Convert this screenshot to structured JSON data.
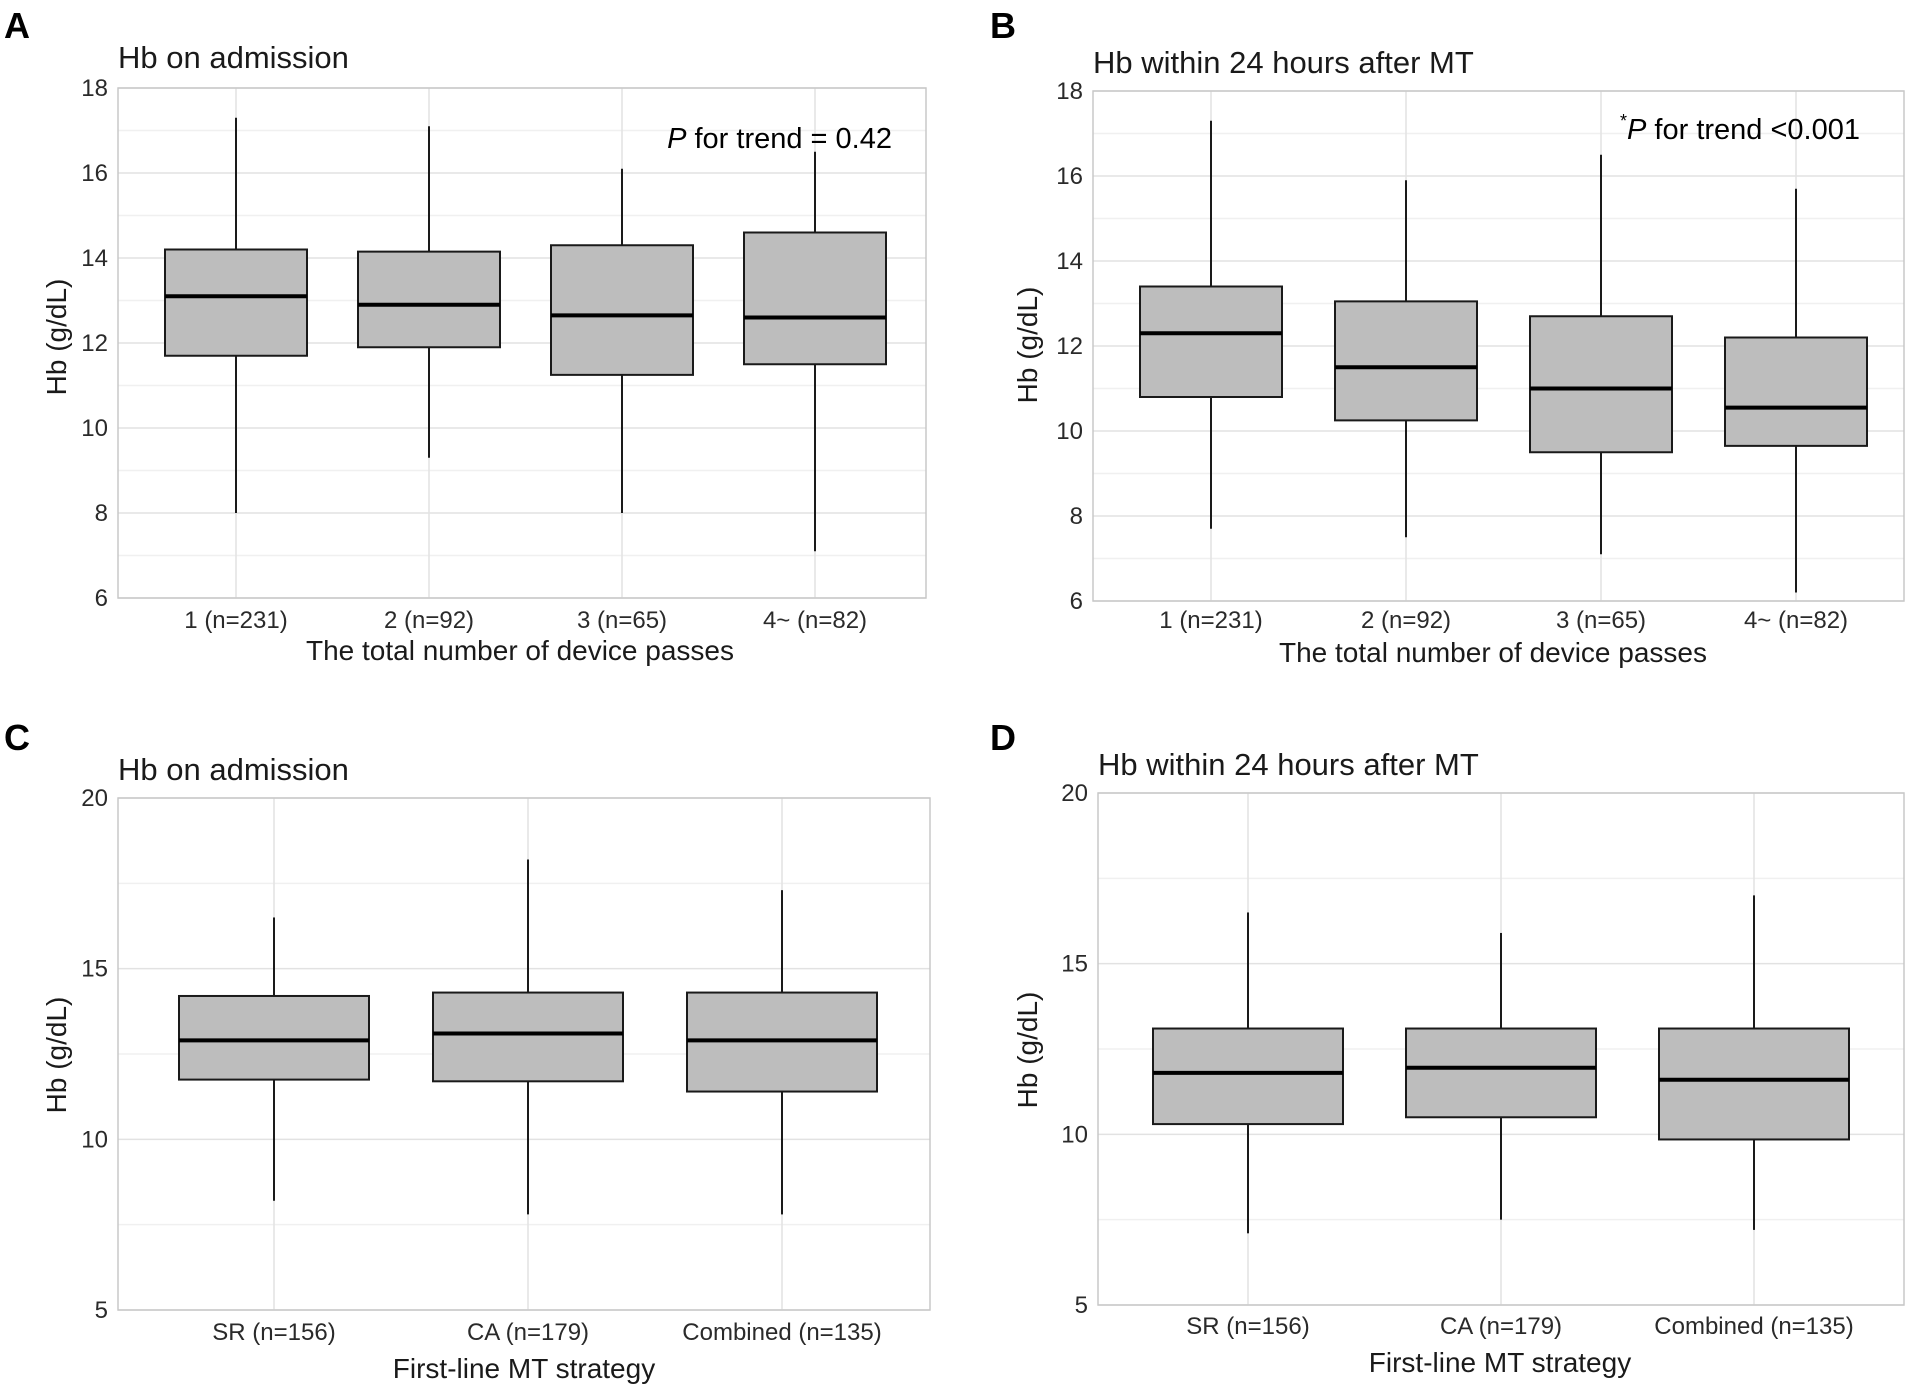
{
  "chart_data": [
    {
      "panel": "A",
      "type": "boxplot",
      "title": "Hb on admission",
      "xlabel": "The total number of device passes",
      "ylabel": "Hb (g/dL)",
      "ylim": [
        6,
        18
      ],
      "yticks": [
        6,
        8,
        10,
        12,
        14,
        16,
        18
      ],
      "grid": true,
      "annotation": {
        "prefix": "",
        "p": "P",
        "text": " for trend = 0.42"
      },
      "categories": [
        "1 (n=231)",
        "2 (n=92)",
        "3 (n=65)",
        "4~ (n=82)"
      ],
      "boxes": [
        {
          "min": 8.0,
          "q1": 11.7,
          "median": 13.1,
          "q3": 14.2,
          "max": 17.3
        },
        {
          "min": 9.3,
          "q1": 11.9,
          "median": 12.9,
          "q3": 14.15,
          "max": 17.1
        },
        {
          "min": 8.0,
          "q1": 11.25,
          "median": 12.65,
          "q3": 14.3,
          "max": 16.1
        },
        {
          "min": 7.1,
          "q1": 11.5,
          "median": 12.6,
          "q3": 14.6,
          "max": 16.5
        }
      ]
    },
    {
      "panel": "B",
      "type": "boxplot",
      "title": "Hb within 24 hours after MT",
      "xlabel": "The total number of device passes",
      "ylabel": "Hb (g/dL)",
      "ylim": [
        6,
        18
      ],
      "yticks": [
        6,
        8,
        10,
        12,
        14,
        16,
        18
      ],
      "grid": true,
      "annotation": {
        "prefix": "*",
        "p": "P",
        "text": " for trend <0.001"
      },
      "categories": [
        "1 (n=231)",
        "2 (n=92)",
        "3 (n=65)",
        "4~ (n=82)"
      ],
      "boxes": [
        {
          "min": 7.7,
          "q1": 10.8,
          "median": 12.3,
          "q3": 13.4,
          "max": 17.3
        },
        {
          "min": 7.5,
          "q1": 10.25,
          "median": 11.5,
          "q3": 13.05,
          "max": 15.9
        },
        {
          "min": 7.1,
          "q1": 9.5,
          "median": 11.0,
          "q3": 12.7,
          "max": 16.5
        },
        {
          "min": 6.2,
          "q1": 9.65,
          "median": 10.55,
          "q3": 12.2,
          "max": 15.7
        }
      ]
    },
    {
      "panel": "C",
      "type": "boxplot",
      "title": "Hb on admission",
      "xlabel": "First-line MT strategy",
      "ylabel": "Hb (g/dL)",
      "ylim": [
        5,
        20
      ],
      "yticks": [
        5,
        10,
        15,
        20
      ],
      "grid": true,
      "categories": [
        "SR (n=156)",
        "CA (n=179)",
        "Combined (n=135)"
      ],
      "boxes": [
        {
          "min": 8.2,
          "q1": 11.75,
          "median": 12.9,
          "q3": 14.2,
          "max": 16.5
        },
        {
          "min": 7.8,
          "q1": 11.7,
          "median": 13.1,
          "q3": 14.3,
          "max": 18.2
        },
        {
          "min": 7.8,
          "q1": 11.4,
          "median": 12.9,
          "q3": 14.3,
          "max": 17.3
        }
      ]
    },
    {
      "panel": "D",
      "type": "boxplot",
      "title": "Hb within 24 hours after MT",
      "xlabel": "First-line MT strategy",
      "ylabel": "Hb (g/dL)",
      "ylim": [
        5,
        20
      ],
      "yticks": [
        5,
        10,
        15,
        20
      ],
      "grid": true,
      "categories": [
        "SR (n=156)",
        "CA (n=179)",
        "Combined (n=135)"
      ],
      "boxes": [
        {
          "min": 7.1,
          "q1": 10.3,
          "median": 11.8,
          "q3": 13.1,
          "max": 16.5
        },
        {
          "min": 7.5,
          "q1": 10.5,
          "median": 11.95,
          "q3": 13.1,
          "max": 15.9
        },
        {
          "min": 7.2,
          "q1": 9.85,
          "median": 11.6,
          "q3": 13.1,
          "max": 17.0
        }
      ]
    }
  ],
  "colors": {
    "box_fill": "#bdbdbd",
    "box_stroke": "#1a1a1a",
    "median": "#000000",
    "grid_major": "#e2e2e2",
    "grid_minor": "#f0f0f0",
    "panel_border": "#c8c8c8"
  }
}
